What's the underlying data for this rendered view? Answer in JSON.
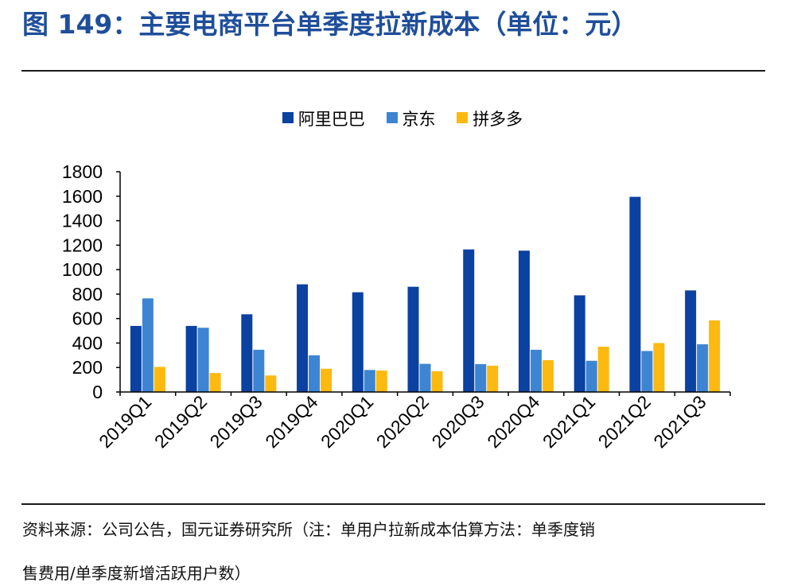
{
  "header": {
    "title": "图 149：主要电商平台单季度拉新成本（单位：元）"
  },
  "footer": {
    "source_line1": "资料来源：公司公告，国元证券研究所（注：单用户拉新成本估算方法：单季度销",
    "source_line2": "售费用/单季度新增活跃用户数）"
  },
  "colors": {
    "alibaba": "#0b41a0",
    "jd": "#3d85d2",
    "pdd": "#fcb910",
    "axis": "#000000"
  },
  "chart_data": {
    "type": "bar",
    "title": "",
    "xlabel": "",
    "ylabel": "",
    "ylim": [
      0,
      1800
    ],
    "yticks": [
      0,
      200,
      400,
      600,
      800,
      1000,
      1200,
      1400,
      1600,
      1800
    ],
    "grid": false,
    "legend_position": "top-center",
    "categories": [
      "2019Q1",
      "2019Q2",
      "2019Q3",
      "2019Q4",
      "2020Q1",
      "2020Q2",
      "2020Q3",
      "2020Q4",
      "2021Q1",
      "2021Q2",
      "2021Q3"
    ],
    "series": [
      {
        "name": "阿里巴巴",
        "color": "#0b41a0",
        "values": [
          540,
          540,
          635,
          880,
          815,
          860,
          1165,
          1155,
          790,
          1595,
          830
        ]
      },
      {
        "name": "京东",
        "color": "#3d85d2",
        "values": [
          765,
          525,
          345,
          300,
          180,
          230,
          228,
          345,
          255,
          335,
          390
        ]
      },
      {
        "name": "拼多多",
        "color": "#fcb910",
        "values": [
          205,
          155,
          135,
          190,
          175,
          170,
          215,
          260,
          370,
          400,
          585
        ]
      }
    ]
  }
}
